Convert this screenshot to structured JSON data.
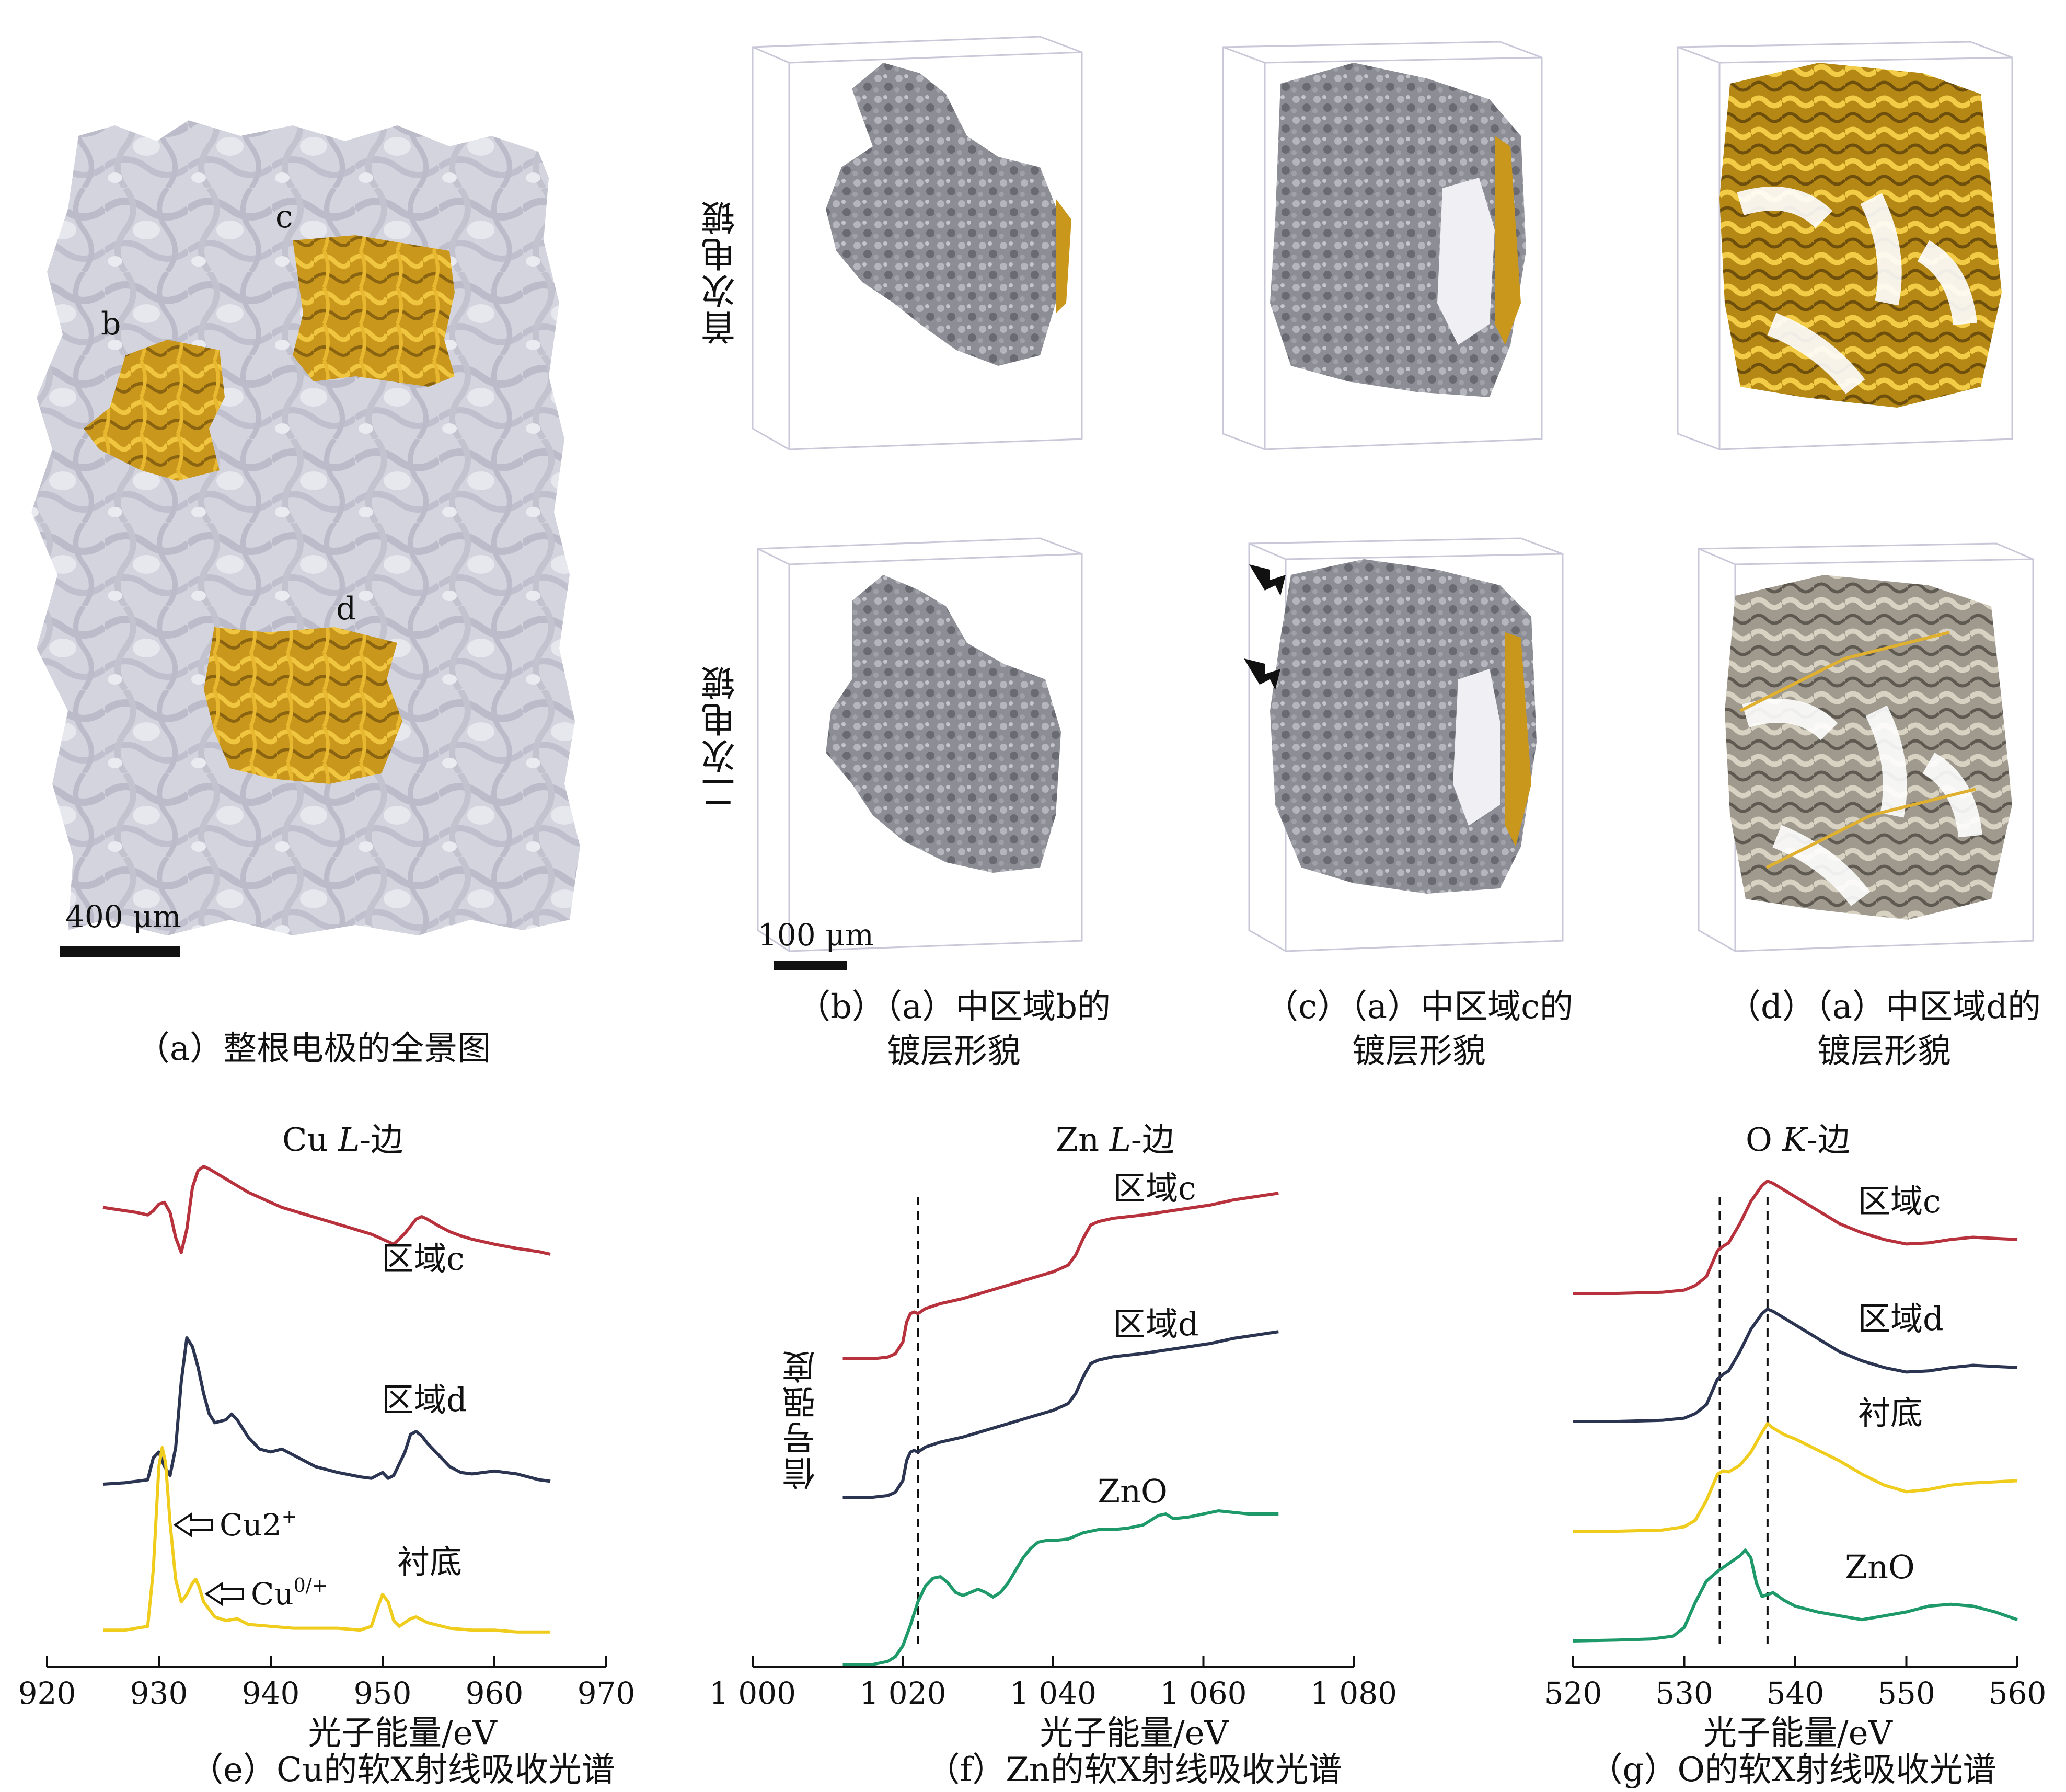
{
  "panels": {
    "a": {
      "caption": "（a）整根电极的全景图",
      "region_labels": [
        "b",
        "c",
        "d"
      ],
      "scale_bar": "400 μm"
    },
    "b": {
      "caption_line1": "（b）（a）中区域b的",
      "caption_line2": "镀层形貌"
    },
    "c": {
      "caption_line1": "（c）（a）中区域c的",
      "caption_line2": "镀层形貌"
    },
    "d": {
      "caption_line1": "（d）（a）中区域d的",
      "caption_line2": "镀层形貌"
    },
    "row_labels": [
      "首次电镀",
      "二次电镀"
    ],
    "scale_bar_b": "100 μm"
  },
  "charts_text": {
    "e": {
      "title_prefix": "Cu ",
      "title_italic": "L",
      "title_suffix": "-边",
      "caption": "（e）Cu的软X射线吸收光谱",
      "xlabel": "光子能量/eV"
    },
    "f": {
      "title_prefix": "Zn ",
      "title_italic": "L",
      "title_suffix": "-边",
      "caption": "（f）Zn的软X射线吸收光谱",
      "xlabel": "光子能量/eV",
      "ylabel": "信号强度"
    },
    "g": {
      "title_prefix": "O ",
      "title_italic": "K",
      "title_suffix": "-边",
      "caption": "（g）O的软X射线吸收光谱",
      "xlabel": "光子能量/eV"
    }
  },
  "colors": {
    "red": "#b8323d",
    "navy": "#2b3552",
    "yellow": "#f0cc1c",
    "green": "#1e9a6a",
    "gold": "#d4a624",
    "gray": "#8f8f99"
  },
  "chart_data": [
    {
      "type": "line",
      "id": "e",
      "title": "Cu L-边",
      "xlabel": "光子能量/eV",
      "ylabel": "",
      "xlim": [
        920,
        970
      ],
      "xticks": [
        920,
        930,
        940,
        950,
        960,
        970
      ],
      "series": [
        {
          "name": "区域c",
          "color": "#b8323d",
          "x": [
            925,
            926,
            928,
            929,
            929.5,
            930,
            930.5,
            931,
            931.5,
            932,
            932.5,
            933,
            933.5,
            934,
            934.5,
            935,
            936,
            937,
            938,
            939,
            940,
            941,
            942,
            943,
            944,
            945,
            946,
            947,
            948,
            949,
            950,
            951,
            952,
            953,
            953.5,
            954,
            955,
            956,
            957,
            958,
            960,
            962,
            964,
            965
          ],
          "y": [
            0.56,
            0.54,
            0.5,
            0.47,
            0.52,
            0.6,
            0.62,
            0.5,
            0.2,
            0.02,
            0.3,
            0.8,
            1.0,
            1.05,
            1.02,
            0.98,
            0.9,
            0.82,
            0.74,
            0.68,
            0.62,
            0.56,
            0.52,
            0.48,
            0.44,
            0.4,
            0.36,
            0.32,
            0.28,
            0.24,
            0.18,
            0.12,
            0.25,
            0.42,
            0.45,
            0.42,
            0.34,
            0.27,
            0.22,
            0.18,
            0.12,
            0.07,
            0.03,
            0.0
          ]
        },
        {
          "name": "区域d",
          "color": "#2b3552",
          "x": [
            925,
            927,
            929,
            929.5,
            930,
            930.5,
            931,
            931.5,
            932,
            932.5,
            933,
            933.5,
            934,
            934.5,
            935,
            936,
            936.5,
            937,
            938,
            939,
            940,
            941,
            942,
            943,
            944,
            946,
            948,
            949,
            950,
            950.5,
            951,
            952,
            952.5,
            953,
            953.5,
            954,
            955,
            956,
            957,
            958,
            960,
            962,
            964,
            965
          ],
          "y": [
            0.0,
            0.01,
            0.03,
            0.18,
            0.22,
            0.12,
            0.06,
            0.25,
            0.7,
            1.0,
            0.94,
            0.8,
            0.62,
            0.48,
            0.42,
            0.44,
            0.48,
            0.44,
            0.32,
            0.24,
            0.22,
            0.24,
            0.2,
            0.16,
            0.12,
            0.08,
            0.05,
            0.04,
            0.08,
            0.04,
            0.06,
            0.22,
            0.34,
            0.36,
            0.33,
            0.28,
            0.2,
            0.12,
            0.08,
            0.07,
            0.09,
            0.07,
            0.03,
            0.02
          ]
        },
        {
          "name": "衬底",
          "color": "#f0cc1c",
          "x": [
            925,
            927,
            929,
            929.5,
            930,
            930.3,
            930.6,
            931,
            931.5,
            932,
            932.5,
            933,
            933.3,
            933.6,
            934,
            935,
            936,
            937,
            938,
            940,
            942,
            944,
            946,
            948,
            949,
            949.5,
            950,
            950.5,
            951,
            951.5,
            952,
            952.5,
            953,
            954,
            956,
            958,
            960,
            962,
            964,
            965
          ],
          "y": [
            0.03,
            0.03,
            0.05,
            0.35,
            0.9,
            1.0,
            0.92,
            0.6,
            0.3,
            0.18,
            0.22,
            0.28,
            0.3,
            0.26,
            0.18,
            0.1,
            0.08,
            0.09,
            0.06,
            0.05,
            0.04,
            0.04,
            0.04,
            0.03,
            0.05,
            0.14,
            0.22,
            0.18,
            0.08,
            0.05,
            0.07,
            0.09,
            0.1,
            0.07,
            0.04,
            0.03,
            0.03,
            0.02,
            0.02,
            0.02
          ]
        }
      ],
      "annotations": [
        "Cu2",
        "Cu",
        "区域c",
        "区域d",
        "衬底"
      ]
    },
    {
      "type": "line",
      "id": "f",
      "title": "Zn L-边",
      "xlabel": "光子能量/eV",
      "ylabel": "信号强度",
      "xlim": [
        1000,
        1080
      ],
      "xticks": [
        "1 000",
        "1 020",
        "1 040",
        "1 060",
        "1 080"
      ],
      "vlines": [
        1022
      ],
      "series": [
        {
          "name": "区域c",
          "color": "#b8323d",
          "x": [
            1012,
            1016,
            1018,
            1019,
            1020,
            1020.5,
            1021,
            1021.5,
            1022,
            1023,
            1025,
            1028,
            1031,
            1034,
            1037,
            1040,
            1042,
            1043,
            1044,
            1045,
            1046,
            1048,
            1050,
            1052,
            1055,
            1058,
            1061,
            1064,
            1067,
            1070
          ],
          "y": [
            0.0,
            0.0,
            0.01,
            0.03,
            0.1,
            0.22,
            0.27,
            0.28,
            0.27,
            0.3,
            0.33,
            0.36,
            0.4,
            0.44,
            0.48,
            0.52,
            0.56,
            0.62,
            0.72,
            0.8,
            0.82,
            0.84,
            0.85,
            0.86,
            0.88,
            0.9,
            0.92,
            0.95,
            0.97,
            0.99
          ]
        },
        {
          "name": "区域d",
          "color": "#2b3552",
          "x": [
            1012,
            1016,
            1018,
            1019,
            1020,
            1020.5,
            1021,
            1021.5,
            1022,
            1023,
            1025,
            1028,
            1031,
            1034,
            1037,
            1040,
            1042,
            1043,
            1044,
            1045,
            1046,
            1048,
            1050,
            1052,
            1055,
            1058,
            1061,
            1064,
            1067,
            1070
          ],
          "y": [
            0.0,
            0.0,
            0.01,
            0.03,
            0.1,
            0.22,
            0.27,
            0.28,
            0.27,
            0.3,
            0.33,
            0.36,
            0.4,
            0.44,
            0.48,
            0.52,
            0.56,
            0.62,
            0.72,
            0.8,
            0.82,
            0.84,
            0.85,
            0.86,
            0.88,
            0.9,
            0.92,
            0.95,
            0.97,
            0.99
          ]
        },
        {
          "name": "ZnO",
          "color": "#1e9a6a",
          "x": [
            1012,
            1014,
            1016,
            1018,
            1019,
            1020,
            1021,
            1022,
            1023,
            1024,
            1025,
            1026,
            1027,
            1028,
            1029,
            1030,
            1031,
            1032,
            1033,
            1034,
            1035,
            1036,
            1037,
            1038,
            1039,
            1040,
            1042,
            1044,
            1046,
            1048,
            1050,
            1052,
            1054,
            1055,
            1056,
            1058,
            1060,
            1062,
            1064,
            1066,
            1068,
            1070
          ],
          "y": [
            0.0,
            0.0,
            0.0,
            0.02,
            0.05,
            0.12,
            0.25,
            0.4,
            0.5,
            0.55,
            0.56,
            0.52,
            0.46,
            0.44,
            0.46,
            0.48,
            0.46,
            0.43,
            0.46,
            0.52,
            0.6,
            0.68,
            0.74,
            0.78,
            0.79,
            0.79,
            0.8,
            0.84,
            0.86,
            0.86,
            0.87,
            0.89,
            0.95,
            0.96,
            0.93,
            0.94,
            0.96,
            0.98,
            0.97,
            0.96,
            0.96,
            0.96
          ]
        }
      ],
      "annotations": [
        "区域c",
        "区域d",
        "ZnO"
      ]
    },
    {
      "type": "line",
      "id": "g",
      "title": "O K-边",
      "xlabel": "光子能量/eV",
      "ylabel": "",
      "xlim": [
        520,
        560
      ],
      "xticks": [
        520,
        530,
        540,
        550,
        560
      ],
      "vlines": [
        533.2,
        537.5
      ],
      "series": [
        {
          "name": "区域c",
          "color": "#b8323d",
          "x": [
            520,
            524,
            528,
            530,
            531,
            532,
            533,
            533.5,
            534,
            535,
            536,
            537,
            537.5,
            538,
            539,
            540,
            542,
            544,
            546,
            548,
            550,
            552,
            554,
            556,
            558,
            560
          ],
          "y": [
            0.0,
            0.0,
            0.01,
            0.03,
            0.07,
            0.15,
            0.38,
            0.42,
            0.45,
            0.62,
            0.82,
            0.96,
            1.0,
            0.98,
            0.92,
            0.86,
            0.74,
            0.62,
            0.54,
            0.48,
            0.44,
            0.45,
            0.48,
            0.5,
            0.49,
            0.48
          ]
        },
        {
          "name": "区域d",
          "color": "#2b3552",
          "x": [
            520,
            524,
            528,
            530,
            531,
            532,
            533,
            533.5,
            534,
            535,
            536,
            537,
            537.5,
            538,
            539,
            540,
            542,
            544,
            546,
            548,
            550,
            552,
            554,
            556,
            558,
            560
          ],
          "y": [
            0.0,
            0.0,
            0.01,
            0.03,
            0.07,
            0.15,
            0.38,
            0.42,
            0.45,
            0.62,
            0.82,
            0.96,
            1.0,
            0.98,
            0.92,
            0.86,
            0.74,
            0.62,
            0.54,
            0.48,
            0.44,
            0.45,
            0.48,
            0.5,
            0.49,
            0.48
          ]
        },
        {
          "name": "衬底",
          "color": "#f0cc1c",
          "x": [
            520,
            524,
            528,
            530,
            531,
            532,
            533,
            533.5,
            534,
            535,
            536,
            537,
            537.5,
            538,
            539,
            540,
            542,
            544,
            546,
            548,
            550,
            552,
            554,
            556,
            558,
            560
          ],
          "y": [
            0.0,
            0.0,
            0.01,
            0.04,
            0.1,
            0.28,
            0.52,
            0.55,
            0.54,
            0.6,
            0.72,
            0.9,
            0.98,
            0.94,
            0.88,
            0.84,
            0.74,
            0.64,
            0.52,
            0.42,
            0.36,
            0.38,
            0.42,
            0.44,
            0.45,
            0.46
          ]
        },
        {
          "name": "ZnO",
          "color": "#1e9a6a",
          "x": [
            520,
            524,
            527,
            529,
            530,
            531,
            532,
            533,
            534,
            535,
            535.5,
            536,
            536.5,
            537,
            538,
            539,
            540,
            542,
            544,
            546,
            548,
            550,
            552,
            554,
            556,
            558,
            560
          ],
          "y": [
            0.0,
            0.01,
            0.02,
            0.05,
            0.14,
            0.4,
            0.62,
            0.72,
            0.8,
            0.88,
            0.94,
            0.86,
            0.6,
            0.46,
            0.5,
            0.42,
            0.36,
            0.3,
            0.26,
            0.22,
            0.26,
            0.3,
            0.36,
            0.38,
            0.36,
            0.3,
            0.22
          ]
        }
      ],
      "annotations": [
        "区域c",
        "区域d",
        "衬底",
        "ZnO"
      ]
    }
  ]
}
